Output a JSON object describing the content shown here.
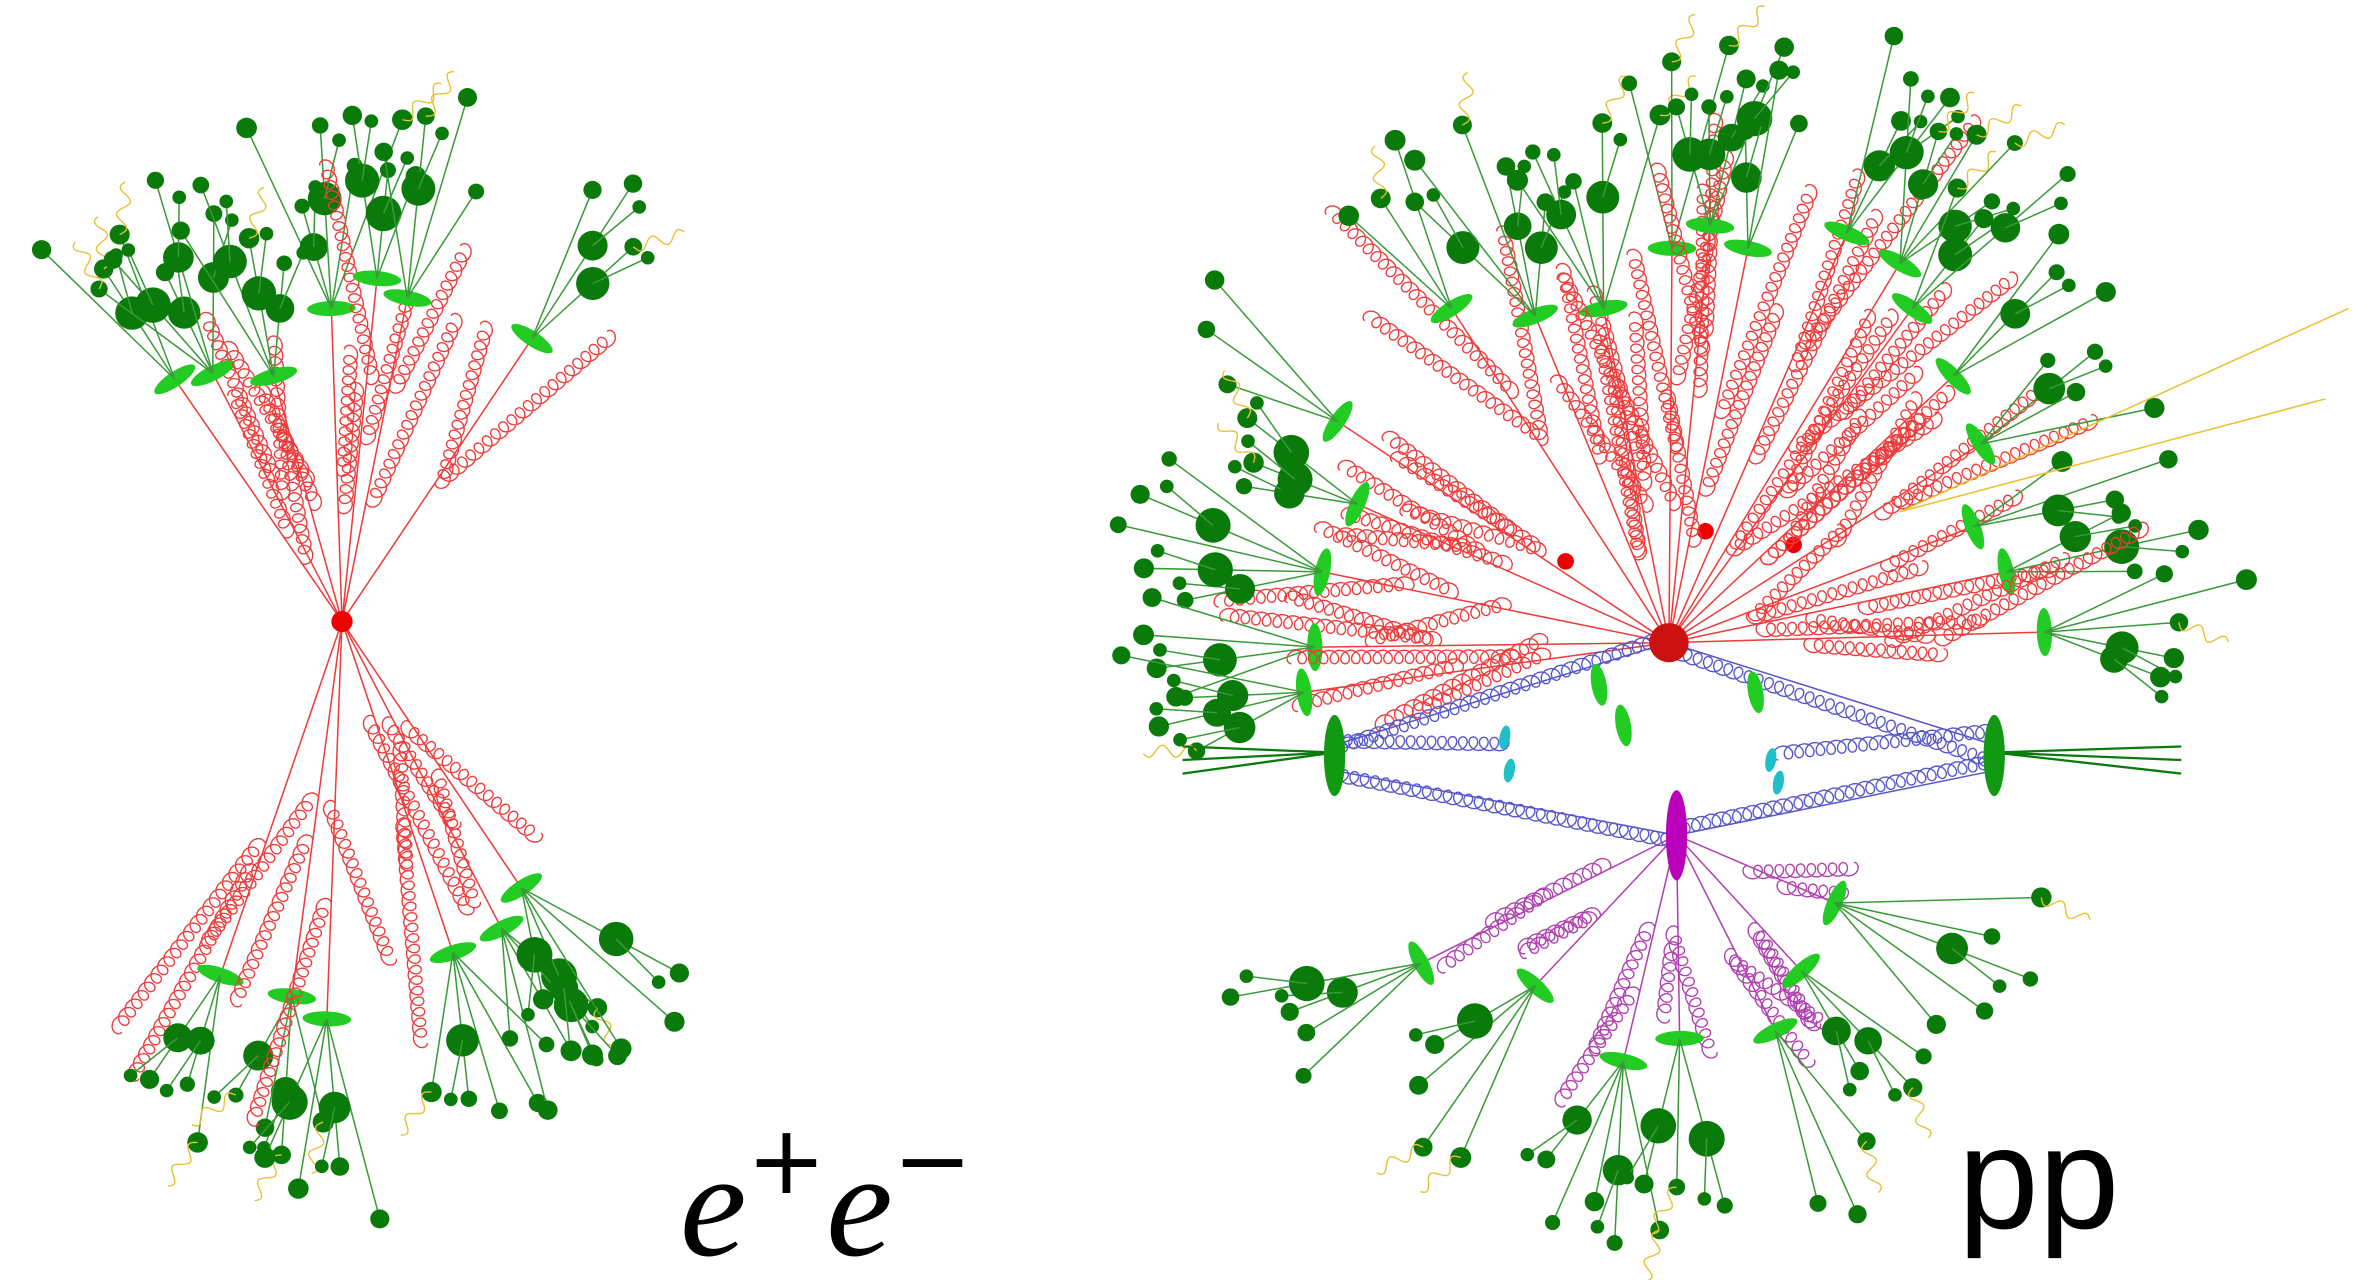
{
  "left_label": {
    "e1": "e",
    "charge1": "+",
    "e2": "e",
    "charge2": "−"
  },
  "right_label": "pp"
}
